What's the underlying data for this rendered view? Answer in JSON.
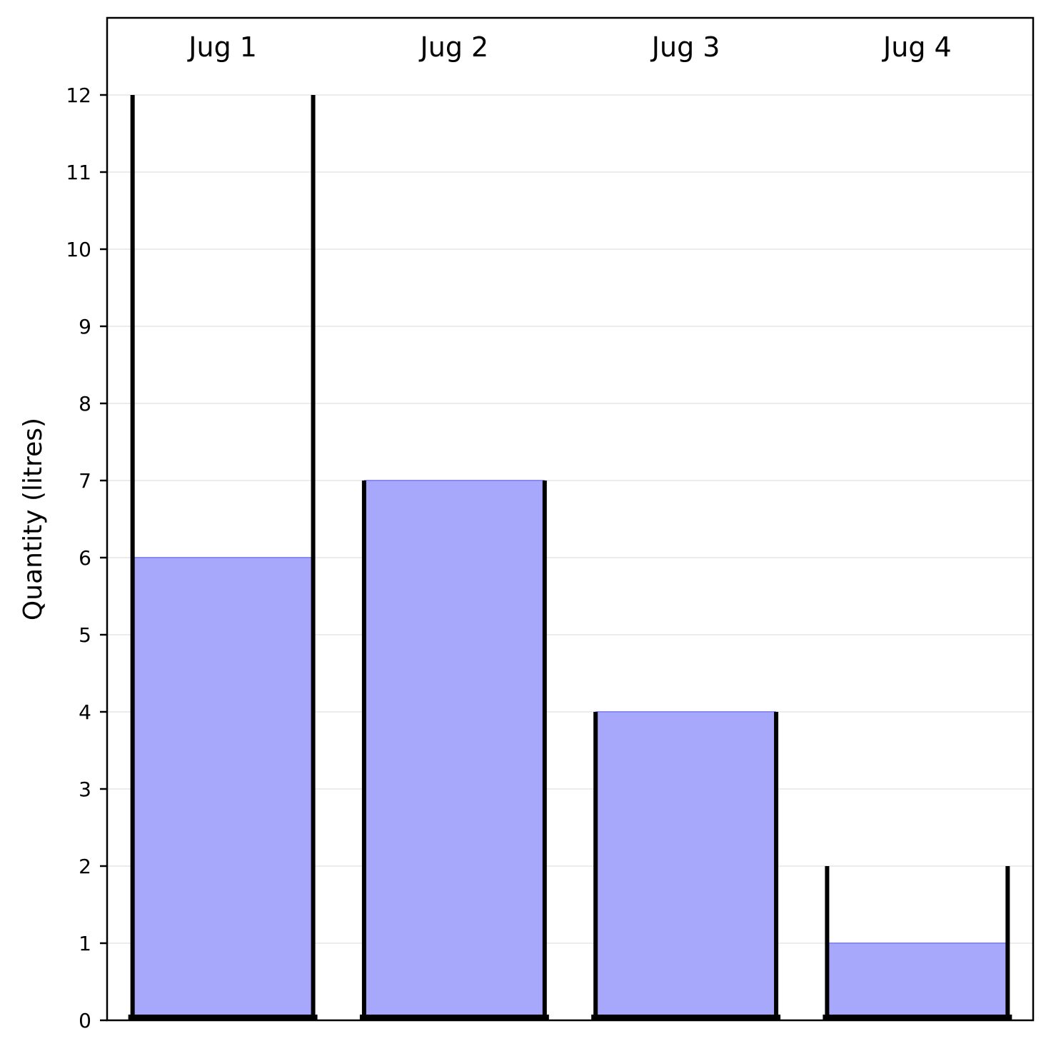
{
  "chart_data": {
    "type": "bar",
    "title": "",
    "ylabel": "Quantity (litres)",
    "xlabel": "",
    "ylim": [
      0,
      13
    ],
    "yticks": [
      0,
      1,
      2,
      3,
      4,
      5,
      6,
      7,
      8,
      9,
      10,
      11,
      12
    ],
    "grid": "horizontal",
    "categories": [
      "Jug 1",
      "Jug 2",
      "Jug 3",
      "Jug 4"
    ],
    "capacities": [
      12,
      7,
      4,
      2
    ],
    "values": [
      6,
      7,
      4,
      1
    ],
    "colors": {
      "fill": "#a7a7fb",
      "fill_edge": "#8a8af0",
      "jug_outline": "#000000",
      "grid": "#d9d9d9"
    }
  }
}
